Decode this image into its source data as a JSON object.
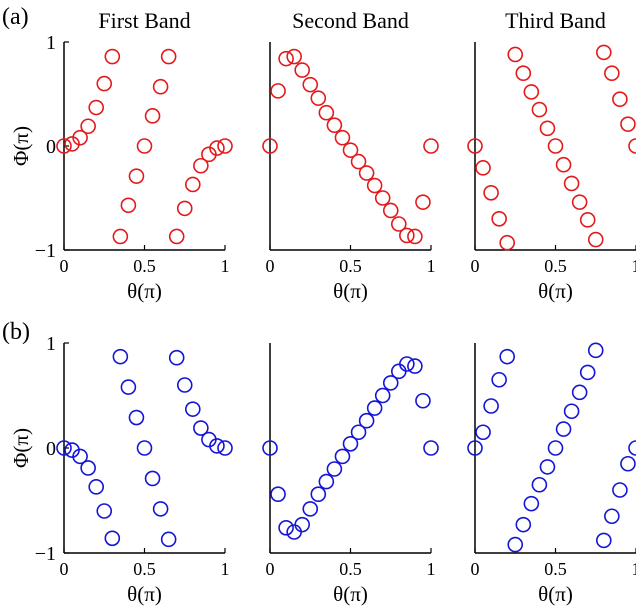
{
  "figure": {
    "y_label": "Φ(π)",
    "x_label": "θ(π)",
    "x_ticks": [
      "0",
      "0.5",
      "1"
    ],
    "y_ticks": [
      "1",
      "0",
      "−1"
    ]
  },
  "rows": [
    {
      "label": "(a)",
      "marker_color": "#e31a1c"
    },
    {
      "label": "(b)",
      "marker_color": "#1515d6"
    }
  ],
  "chart_data": [
    {
      "type": "scatter",
      "row": 0,
      "col": 0,
      "title": "First Band",
      "xlabel": "θ(π)",
      "ylabel": "Φ(π)",
      "xlim": [
        0,
        1
      ],
      "ylim": [
        -1,
        1
      ],
      "x_ticks": [
        0,
        0.5,
        1
      ],
      "y_ticks": [
        -1,
        0,
        1
      ],
      "grid": false,
      "marker": "open-circle",
      "color": "#e31a1c",
      "x": [
        0,
        0.05,
        0.1,
        0.15,
        0.2,
        0.25,
        0.3,
        0.35,
        0.4,
        0.45,
        0.5,
        0.55,
        0.6,
        0.65,
        0.7,
        0.75,
        0.8,
        0.85,
        0.9,
        0.95,
        1.0
      ],
      "y": [
        0,
        0.02,
        0.08,
        0.19,
        0.37,
        0.6,
        0.86,
        -0.87,
        -0.57,
        -0.29,
        0,
        0.29,
        0.57,
        0.86,
        -0.87,
        -0.6,
        -0.37,
        -0.19,
        -0.08,
        -0.02,
        0
      ]
    },
    {
      "type": "scatter",
      "row": 0,
      "col": 1,
      "title": "Second Band",
      "xlabel": "θ(π)",
      "xlim": [
        0,
        1
      ],
      "ylim": [
        -1,
        1
      ],
      "x_ticks": [
        0,
        0.5,
        1
      ],
      "grid": false,
      "marker": "open-circle",
      "color": "#e31a1c",
      "x": [
        0,
        0.05,
        0.1,
        0.15,
        0.2,
        0.25,
        0.3,
        0.35,
        0.4,
        0.45,
        0.5,
        0.55,
        0.6,
        0.65,
        0.7,
        0.75,
        0.8,
        0.85,
        0.9,
        0.95,
        1.0
      ],
      "y": [
        0,
        0.53,
        0.84,
        0.86,
        0.73,
        0.59,
        0.46,
        0.32,
        0.2,
        0.08,
        -0.04,
        -0.15,
        -0.26,
        -0.38,
        -0.5,
        -0.62,
        -0.75,
        -0.86,
        -0.87,
        -0.54,
        0
      ]
    },
    {
      "type": "scatter",
      "row": 0,
      "col": 2,
      "title": "Third Band",
      "xlabel": "θ(π)",
      "xlim": [
        0,
        1
      ],
      "ylim": [
        -1,
        1
      ],
      "x_ticks": [
        0,
        0.5,
        1
      ],
      "grid": false,
      "marker": "open-circle",
      "color": "#e31a1c",
      "x": [
        0,
        0.05,
        0.1,
        0.15,
        0.2,
        0.25,
        0.3,
        0.35,
        0.4,
        0.45,
        0.5,
        0.55,
        0.6,
        0.65,
        0.7,
        0.75,
        0.8,
        0.85,
        0.9,
        0.95,
        1.0
      ],
      "y": [
        0,
        -0.21,
        -0.45,
        -0.7,
        -0.93,
        0.88,
        0.7,
        0.52,
        0.35,
        0.17,
        0,
        -0.18,
        -0.36,
        -0.54,
        -0.71,
        -0.9,
        0.9,
        0.7,
        0.45,
        0.21,
        0
      ]
    },
    {
      "type": "scatter",
      "row": 1,
      "col": 0,
      "xlabel": "θ(π)",
      "ylabel": "Φ(π)",
      "xlim": [
        0,
        1
      ],
      "ylim": [
        -1,
        1
      ],
      "x_ticks": [
        0,
        0.5,
        1
      ],
      "y_ticks": [
        -1,
        0,
        1
      ],
      "grid": false,
      "marker": "open-circle",
      "color": "#1515d6",
      "x": [
        0,
        0.05,
        0.1,
        0.15,
        0.2,
        0.25,
        0.3,
        0.35,
        0.4,
        0.45,
        0.5,
        0.55,
        0.6,
        0.65,
        0.7,
        0.75,
        0.8,
        0.85,
        0.9,
        0.95,
        1.0
      ],
      "y": [
        0,
        -0.02,
        -0.08,
        -0.19,
        -0.37,
        -0.6,
        -0.86,
        0.87,
        0.58,
        0.29,
        0,
        -0.29,
        -0.58,
        -0.87,
        0.86,
        0.6,
        0.37,
        0.19,
        0.08,
        0.02,
        0
      ]
    },
    {
      "type": "scatter",
      "row": 1,
      "col": 1,
      "xlabel": "θ(π)",
      "xlim": [
        0,
        1
      ],
      "ylim": [
        -1,
        1
      ],
      "x_ticks": [
        0,
        0.5,
        1
      ],
      "grid": false,
      "marker": "open-circle",
      "color": "#1515d6",
      "x": [
        0,
        0.05,
        0.1,
        0.15,
        0.2,
        0.25,
        0.3,
        0.35,
        0.4,
        0.45,
        0.5,
        0.55,
        0.6,
        0.65,
        0.7,
        0.75,
        0.8,
        0.85,
        0.9,
        0.95,
        1.0
      ],
      "y": [
        0,
        -0.44,
        -0.76,
        -0.8,
        -0.73,
        -0.58,
        -0.44,
        -0.32,
        -0.2,
        -0.08,
        0.04,
        0.15,
        0.26,
        0.38,
        0.5,
        0.62,
        0.73,
        0.8,
        0.78,
        0.45,
        0
      ]
    },
    {
      "type": "scatter",
      "row": 1,
      "col": 2,
      "xlabel": "θ(π)",
      "xlim": [
        0,
        1
      ],
      "ylim": [
        -1,
        1
      ],
      "x_ticks": [
        0,
        0.5,
        1
      ],
      "grid": false,
      "marker": "open-circle",
      "color": "#1515d6",
      "x": [
        0,
        0.05,
        0.1,
        0.15,
        0.2,
        0.25,
        0.3,
        0.35,
        0.4,
        0.45,
        0.5,
        0.55,
        0.6,
        0.65,
        0.7,
        0.75,
        0.8,
        0.85,
        0.9,
        0.95,
        1.0
      ],
      "y": [
        0,
        0.15,
        0.4,
        0.65,
        0.87,
        -0.92,
        -0.73,
        -0.53,
        -0.35,
        -0.18,
        0,
        0.18,
        0.35,
        0.53,
        0.72,
        0.93,
        -0.88,
        -0.65,
        -0.4,
        -0.15,
        0
      ]
    }
  ]
}
